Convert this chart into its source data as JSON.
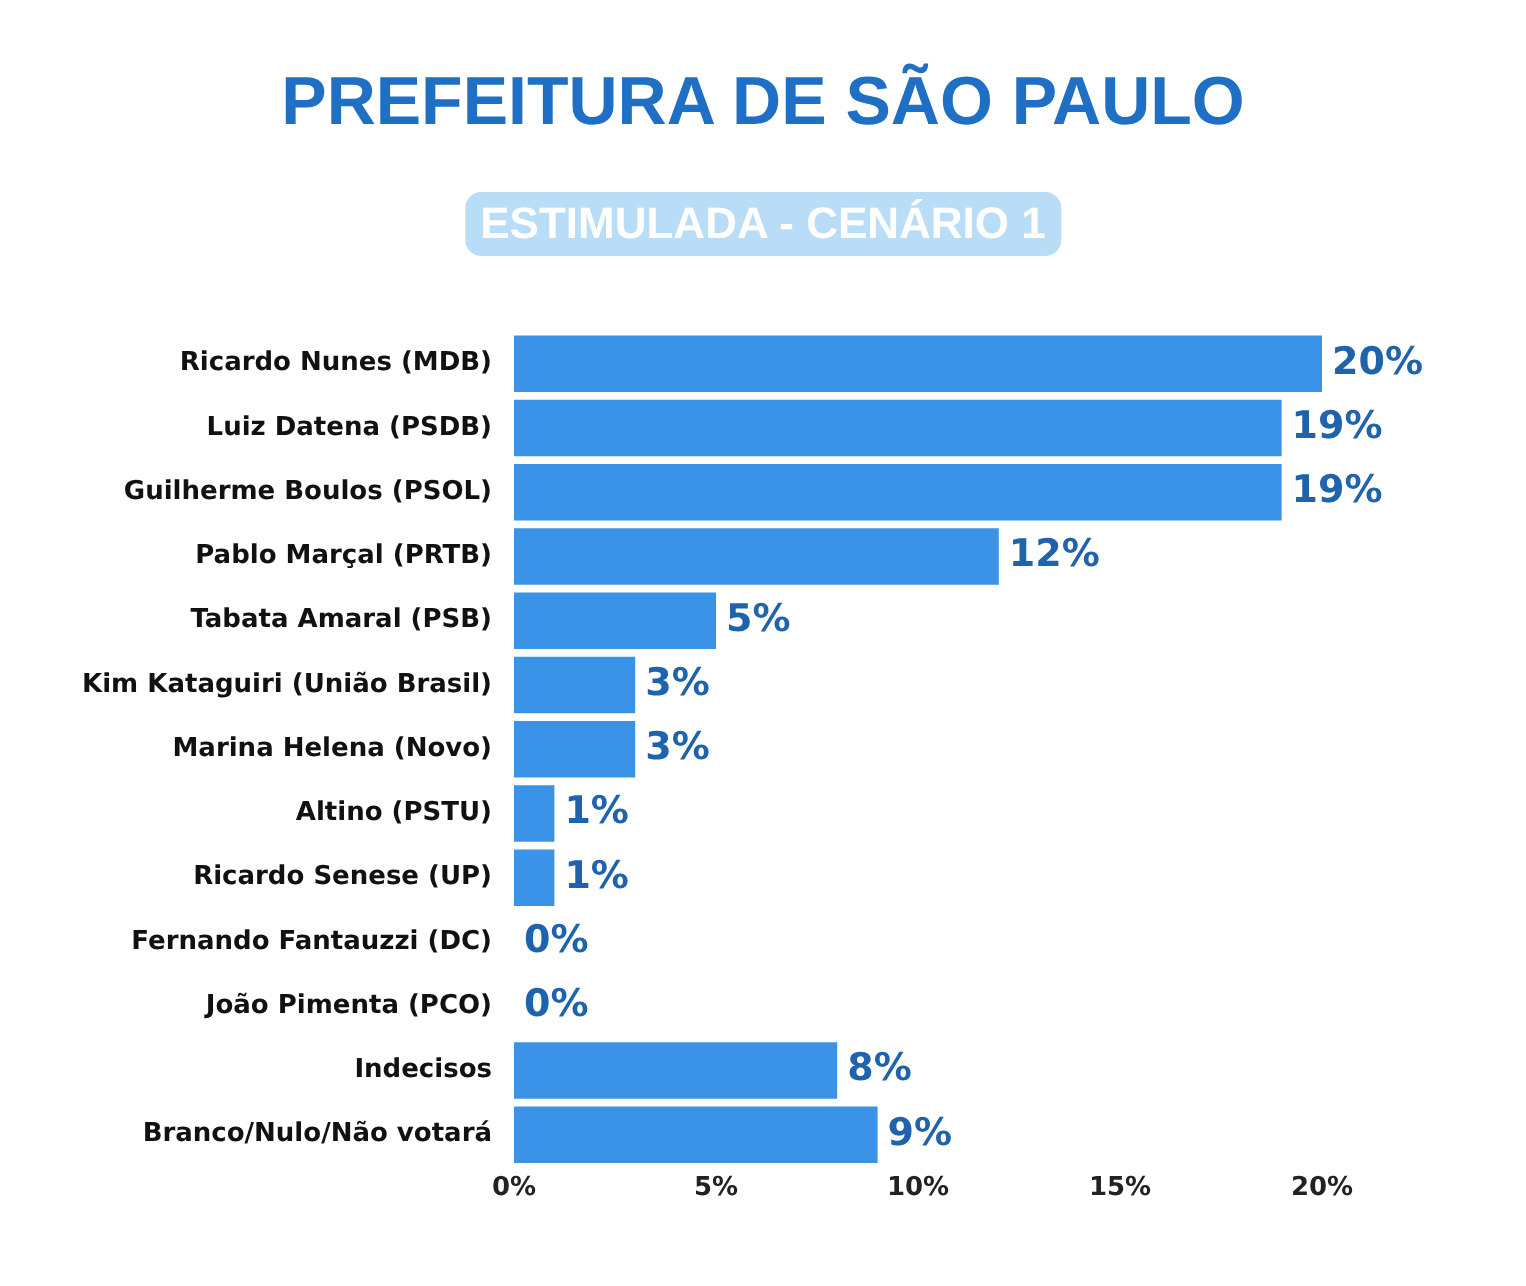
{
  "chart_data": {
    "type": "bar",
    "orientation": "horizontal",
    "title": "PREFEITURA DE SÃO PAULO",
    "subtitle": "ESTIMULADA - CENÁRIO 1",
    "categories": [
      "Ricardo Nunes (MDB)",
      "Luiz Datena (PSDB)",
      "Guilherme Boulos (PSOL)",
      "Pablo Marçal (PRTB)",
      "Tabata Amaral (PSB)",
      "Kim Kataguiri (União Brasil)",
      "Marina Helena (Novo)",
      "Altino (PSTU)",
      "Ricardo Senese (UP)",
      "Fernando Fantauzzi (DC)",
      "João Pimenta (PCO)",
      "Indecisos",
      "Branco/Nulo/Não votará"
    ],
    "values": [
      20,
      19,
      19,
      12,
      5,
      3,
      3,
      1,
      1,
      0,
      0,
      8,
      9
    ],
    "value_labels": [
      "20%",
      "19%",
      "19%",
      "12%",
      "5%",
      "3%",
      "3%",
      "1%",
      "1%",
      "0%",
      "0%",
      "8%",
      "9%"
    ],
    "color": "#3a93e6",
    "xlim": [
      0,
      20
    ],
    "xticks": [
      {
        "value": 0,
        "label": "0%"
      },
      {
        "value": 5,
        "label": "5%"
      },
      {
        "value": 10,
        "label": "10%"
      },
      {
        "value": 15,
        "label": "15%"
      },
      {
        "value": 20,
        "label": "20%"
      }
    ],
    "grid": false,
    "legend": false
  }
}
